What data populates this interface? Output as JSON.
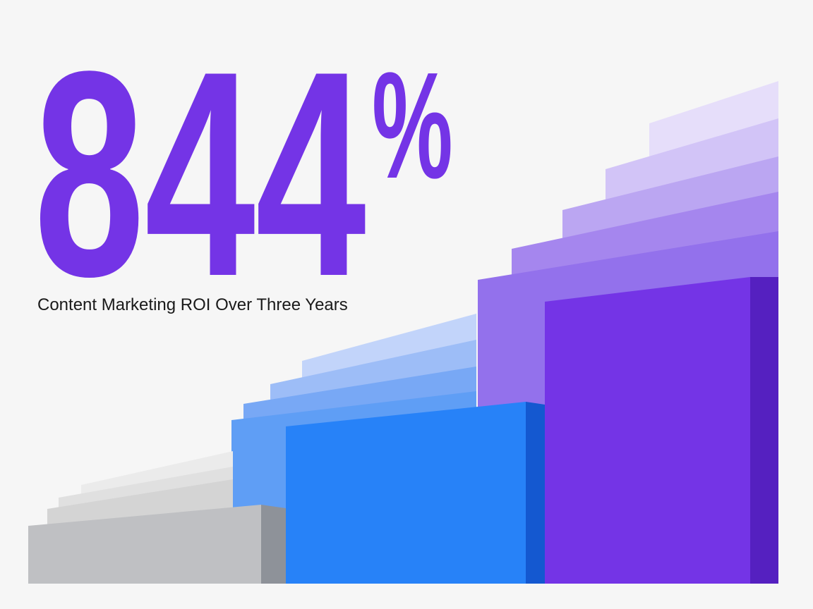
{
  "headline": {
    "number": "844",
    "unit": "%"
  },
  "subtitle": "Content Marketing ROI Over Three Years"
}
